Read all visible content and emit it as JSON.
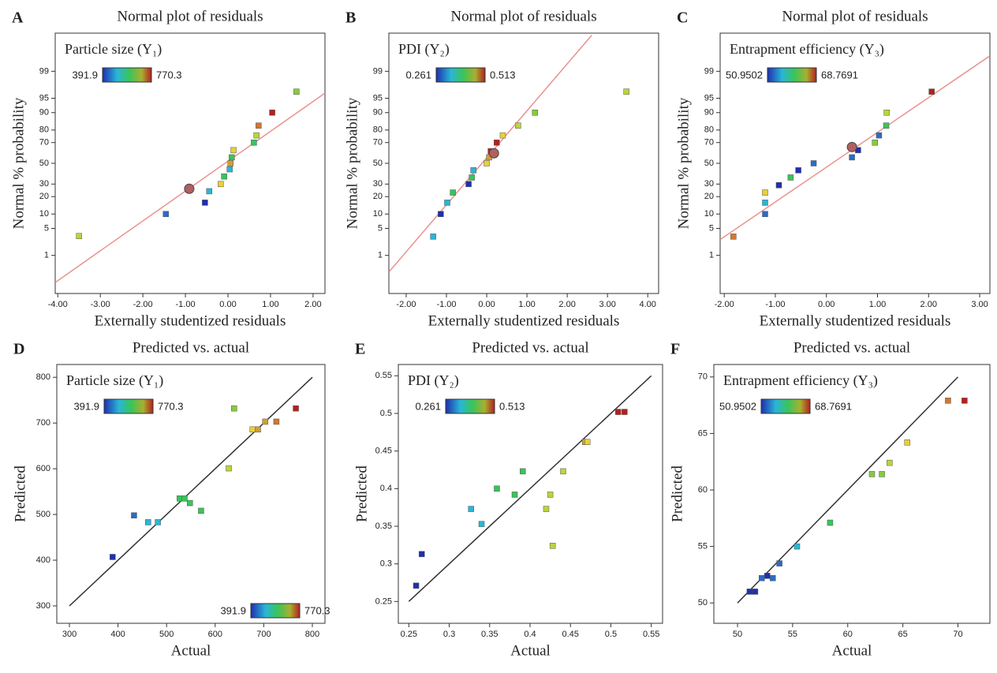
{
  "chart_data": [
    {
      "type": "scatter",
      "label": "A",
      "title": "Normal plot of residuals",
      "xlabel": "Externally studentized residuals",
      "ylabel": "Normal % probability",
      "yscale": "probability",
      "colorbar_title": "Particle size (Y₁)",
      "colorbar_range": [
        391.9,
        770.3
      ],
      "colorbar_loc": [
        "upper left"
      ],
      "xlim": [
        -4.06,
        2.28
      ],
      "ylim": [
        0.05,
        99.95
      ],
      "xticks": [
        {
          "value": -4,
          "label": "-4.00"
        },
        {
          "value": -3,
          "label": "-3.00"
        },
        {
          "value": -2,
          "label": "-2.00"
        },
        {
          "value": -1,
          "label": "-1.00"
        },
        {
          "value": 0,
          "label": "0.00"
        },
        {
          "value": 1,
          "label": "1.00"
        },
        {
          "value": 2,
          "label": "2.00"
        }
      ],
      "yticks": [
        1,
        5,
        10,
        20,
        30,
        50,
        70,
        80,
        90,
        95,
        99
      ],
      "x": [
        -3.5,
        -1.46,
        -0.54,
        -0.44,
        -0.17,
        -0.09,
        0.04,
        0.06,
        0.09,
        0.13,
        0.61,
        0.67,
        0.72,
        1.04,
        1.61
      ],
      "values": [
        3.3,
        10,
        16,
        24,
        30,
        37,
        44,
        50,
        56,
        63,
        70,
        76,
        83,
        90,
        96.5
      ],
      "point_colors": [
        "#b8d63a",
        "#2a6cc4",
        "#1f2fb0",
        "#2ab6d6",
        "#e8d038",
        "#39c45a",
        "#2ab6d6",
        "#d2a030",
        "#39c45a",
        "#e8d038",
        "#39c45a",
        "#b8d63a",
        "#d2772f",
        "#b3201f",
        "#86cc3a"
      ],
      "highlight": {
        "x": -0.91,
        "y": 26
      },
      "fit_line": {
        "x": [
          -4.06,
          2.28
        ],
        "y": [
          0.13,
          96.2
        ]
      },
      "fit_color": "#e8928e"
    },
    {
      "type": "scatter",
      "label": "B",
      "title": "Normal plot of residuals",
      "xlabel": "Externally studentized residuals",
      "ylabel": "Normal % probability",
      "yscale": "probability",
      "colorbar_title": "PDI (Y₂)",
      "colorbar_range": [
        0.261,
        0.513
      ],
      "colorbar_loc": [
        "upper left"
      ],
      "xlim": [
        -2.43,
        4.27
      ],
      "ylim": [
        0.05,
        99.95
      ],
      "xticks": [
        {
          "value": -2,
          "label": "-2.00"
        },
        {
          "value": -1,
          "label": "-1.00"
        },
        {
          "value": 0,
          "label": "0.00"
        },
        {
          "value": 1,
          "label": "1.00"
        },
        {
          "value": 2,
          "label": "2.00"
        },
        {
          "value": 3,
          "label": "3.00"
        },
        {
          "value": 4,
          "label": "4.00"
        }
      ],
      "yticks": [
        1,
        5,
        10,
        20,
        30,
        50,
        70,
        80,
        90,
        95,
        99
      ],
      "x": [
        -1.33,
        -1.14,
        -0.98,
        -0.84,
        -0.45,
        -0.37,
        -0.33,
        0.0,
        0.06,
        0.1,
        0.25,
        0.4,
        0.78,
        1.2,
        3.47
      ],
      "values": [
        3.2,
        10,
        16,
        23,
        30,
        36,
        43,
        50,
        56,
        62,
        70,
        76,
        83,
        90,
        96.5
      ],
      "point_colors": [
        "#2ab6d6",
        "#1f2fb0",
        "#2ab6d6",
        "#39c45a",
        "#1f2fb0",
        "#39c45a",
        "#2ab6d6",
        "#e8d038",
        "#d2a030",
        "#b3201f",
        "#b3201f",
        "#e8d038",
        "#b8d63a",
        "#86cc3a",
        "#b8d63a"
      ],
      "highlight": {
        "x": 0.18,
        "y": 60
      },
      "fit_line": {
        "x": [
          -2.43,
          2.61
        ],
        "y": [
          0.3,
          99.94
        ]
      },
      "fit_color": "#e8928e"
    },
    {
      "type": "scatter",
      "label": "C",
      "title": "Normal plot of residuals",
      "xlabel": "Externally studentized residuals",
      "ylabel": "Normal % probability",
      "yscale": "probability",
      "colorbar_title": "Entrapment efficiency (Y₃)",
      "colorbar_range": [
        50.9502,
        68.7691
      ],
      "colorbar_loc": [
        "upper left"
      ],
      "xlim": [
        -2.08,
        3.2
      ],
      "ylim": [
        0.05,
        99.95
      ],
      "xticks": [
        {
          "value": -2,
          "label": "-2.00"
        },
        {
          "value": -1,
          "label": "-1.00"
        },
        {
          "value": 0,
          "label": "0.00"
        },
        {
          "value": 1,
          "label": "1.00"
        },
        {
          "value": 2,
          "label": "2.00"
        },
        {
          "value": 3,
          "label": "3.00"
        }
      ],
      "yticks": [
        1,
        5,
        10,
        20,
        30,
        50,
        70,
        80,
        90,
        95,
        99
      ],
      "x": [
        -1.82,
        -1.2,
        -1.2,
        -1.2,
        -0.93,
        -0.7,
        -0.55,
        -0.25,
        0.5,
        0.62,
        0.95,
        1.03,
        1.17,
        1.18,
        2.06
      ],
      "values": [
        3.2,
        10,
        16,
        23,
        29,
        36,
        43,
        50,
        56,
        63,
        70,
        76,
        83,
        90,
        96.5
      ],
      "point_colors": [
        "#d2772f",
        "#2a6cc4",
        "#2ab6d6",
        "#e8d038",
        "#1f2fb0",
        "#39c45a",
        "#1f2fb0",
        "#2a6cc4",
        "#2a6cc4",
        "#1f2fb0",
        "#86cc3a",
        "#2a6cc4",
        "#39c45a",
        "#b8d63a",
        "#b3201f"
      ],
      "highlight": {
        "x": 0.5,
        "y": 66
      },
      "fit_line": {
        "x": [
          -2.08,
          3.2
        ],
        "y": [
          2.7,
          99.67
        ]
      },
      "fit_color": "#e8928e"
    },
    {
      "type": "scatter",
      "label": "D",
      "title": "Predicted vs. actual",
      "xlabel": "Actual",
      "ylabel": "Predicted",
      "colorbar_title": "Particle size (Y₁)",
      "colorbar_range": [
        391.9,
        770.3
      ],
      "colorbar_loc": [
        "upper left",
        "lower right"
      ],
      "xlim": [
        274,
        826
      ],
      "ylim": [
        262,
        828
      ],
      "xticks": [
        300,
        400,
        500,
        600,
        700,
        800
      ],
      "yticks": [
        300,
        400,
        500,
        600,
        700,
        800
      ],
      "x": [
        389,
        433,
        462,
        482,
        527,
        537,
        548,
        571,
        628,
        639,
        677,
        688,
        703,
        726,
        766
      ],
      "values": [
        407,
        498,
        483,
        483,
        535,
        535,
        525,
        508,
        601,
        732,
        686,
        686,
        703,
        703,
        732
      ],
      "point_colors": [
        "#1f2fb0",
        "#2a6cc4",
        "#2ab6d6",
        "#2ab6d6",
        "#39c45a",
        "#39c45a",
        "#39c45a",
        "#39c45a",
        "#b8d63a",
        "#86cc3a",
        "#e8d038",
        "#d2a030",
        "#d2a030",
        "#d2772f",
        "#b3201f"
      ],
      "fit_line": {
        "x": [
          300,
          800
        ],
        "y": [
          300,
          800
        ]
      },
      "fit_color": "#333333"
    },
    {
      "type": "scatter",
      "label": "E",
      "title": "Predicted vs. actual",
      "xlabel": "Actual",
      "ylabel": "Predicted",
      "colorbar_title": "PDI (Y₂)",
      "colorbar_range": [
        0.261,
        0.513
      ],
      "colorbar_loc": [
        "upper left"
      ],
      "xlim": [
        0.237,
        0.564
      ],
      "ylim": [
        0.221,
        0.565
      ],
      "xticks": [
        0.25,
        0.3,
        0.35,
        0.4,
        0.45,
        0.5,
        0.55
      ],
      "yticks": [
        0.25,
        0.3,
        0.35,
        0.4,
        0.45,
        0.5,
        0.55
      ],
      "x": [
        0.259,
        0.266,
        0.327,
        0.34,
        0.359,
        0.381,
        0.391,
        0.42,
        0.425,
        0.428,
        0.441,
        0.468,
        0.471,
        0.509,
        0.517
      ],
      "values": [
        0.271,
        0.313,
        0.373,
        0.353,
        0.4,
        0.392,
        0.423,
        0.373,
        0.392,
        0.324,
        0.423,
        0.462,
        0.462,
        0.502,
        0.502
      ],
      "point_colors": [
        "#1f2fb0",
        "#1f2fb0",
        "#2ab6d6",
        "#2ab6d6",
        "#39c45a",
        "#39c45a",
        "#39c45a",
        "#b8d63a",
        "#b8d63a",
        "#b8d63a",
        "#b8d63a",
        "#d2a030",
        "#e8d038",
        "#b3201f",
        "#b3201f"
      ],
      "fit_line": {
        "x": [
          0.25,
          0.55
        ],
        "y": [
          0.25,
          0.55
        ]
      },
      "fit_color": "#333333"
    },
    {
      "type": "scatter",
      "label": "F",
      "title": "Predicted vs. actual",
      "xlabel": "Actual",
      "ylabel": "Predicted",
      "colorbar_title": "Entrapment efficiency (Y₃)",
      "colorbar_range": [
        50.9502,
        68.7691
      ],
      "colorbar_loc": [
        "upper left"
      ],
      "xlim": [
        47.85,
        72.9
      ],
      "ylim": [
        48.2,
        71.1
      ],
      "xticks": [
        50,
        55,
        60,
        65,
        70
      ],
      "yticks": [
        50,
        55,
        60,
        65,
        70
      ],
      "x": [
        51.1,
        51.6,
        52.2,
        52.7,
        53.2,
        53.8,
        55.4,
        58.4,
        62.2,
        63.1,
        63.8,
        65.4,
        69.1,
        70.6
      ],
      "values": [
        51.0,
        51.0,
        52.2,
        52.4,
        52.2,
        53.5,
        55.0,
        57.1,
        61.4,
        61.4,
        62.4,
        64.2,
        67.9,
        67.9
      ],
      "point_colors": [
        "#1f2fb0",
        "#1f2fb0",
        "#2a6cc4",
        "#1f2fb0",
        "#2a6cc4",
        "#2a6cc4",
        "#2ab6d6",
        "#39c45a",
        "#86cc3a",
        "#86cc3a",
        "#b8d63a",
        "#e8d038",
        "#d2772f",
        "#b3201f"
      ],
      "fit_line": {
        "x": [
          50,
          70
        ],
        "y": [
          50,
          70
        ]
      },
      "fit_color": "#333333"
    }
  ]
}
